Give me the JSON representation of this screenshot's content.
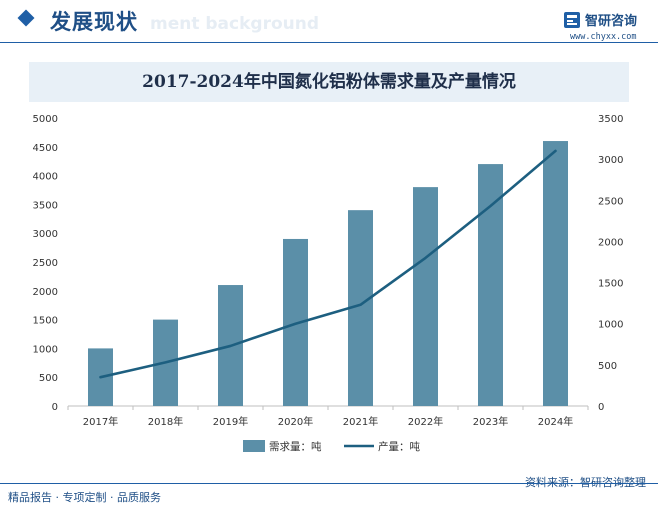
{
  "header": {
    "title": "发展现状",
    "ghost_text": "ment background"
  },
  "logo": {
    "name": "智研咨询",
    "url": "www.chyxx.com"
  },
  "chart_data": {
    "type": "bar",
    "title": "2017-2024年中国氮化铝粉体需求量及产量情况",
    "categories": [
      "2017年",
      "2018年",
      "2019年",
      "2020年",
      "2021年",
      "2022年",
      "2023年",
      "2024年"
    ],
    "series": [
      {
        "name": "需求量：吨",
        "kind": "bar",
        "axis": "left",
        "color": "#5b8fa8",
        "values": [
          1000,
          1500,
          2100,
          2900,
          3400,
          3800,
          4200,
          4600
        ]
      },
      {
        "name": "产量：吨",
        "kind": "line",
        "axis": "right",
        "color": "#1d5f80",
        "values": [
          350,
          530,
          730,
          1000,
          1230,
          1800,
          2430,
          3100
        ]
      }
    ],
    "left_axis": {
      "min": 0,
      "max": 5000,
      "step": 500,
      "ticks": [
        "0",
        "500",
        "1000",
        "1500",
        "2000",
        "2500",
        "3000",
        "3500",
        "4000",
        "4500",
        "5000"
      ]
    },
    "right_axis": {
      "min": 0,
      "max": 3500,
      "step": 500,
      "ticks": [
        "0",
        "500",
        "1000",
        "1500",
        "2000",
        "2500",
        "3000",
        "3500"
      ]
    },
    "legend_position": "bottom"
  },
  "source": "资料来源：智研咨询整理",
  "footer": "精品报告 · 专项定制 · 品质服务"
}
